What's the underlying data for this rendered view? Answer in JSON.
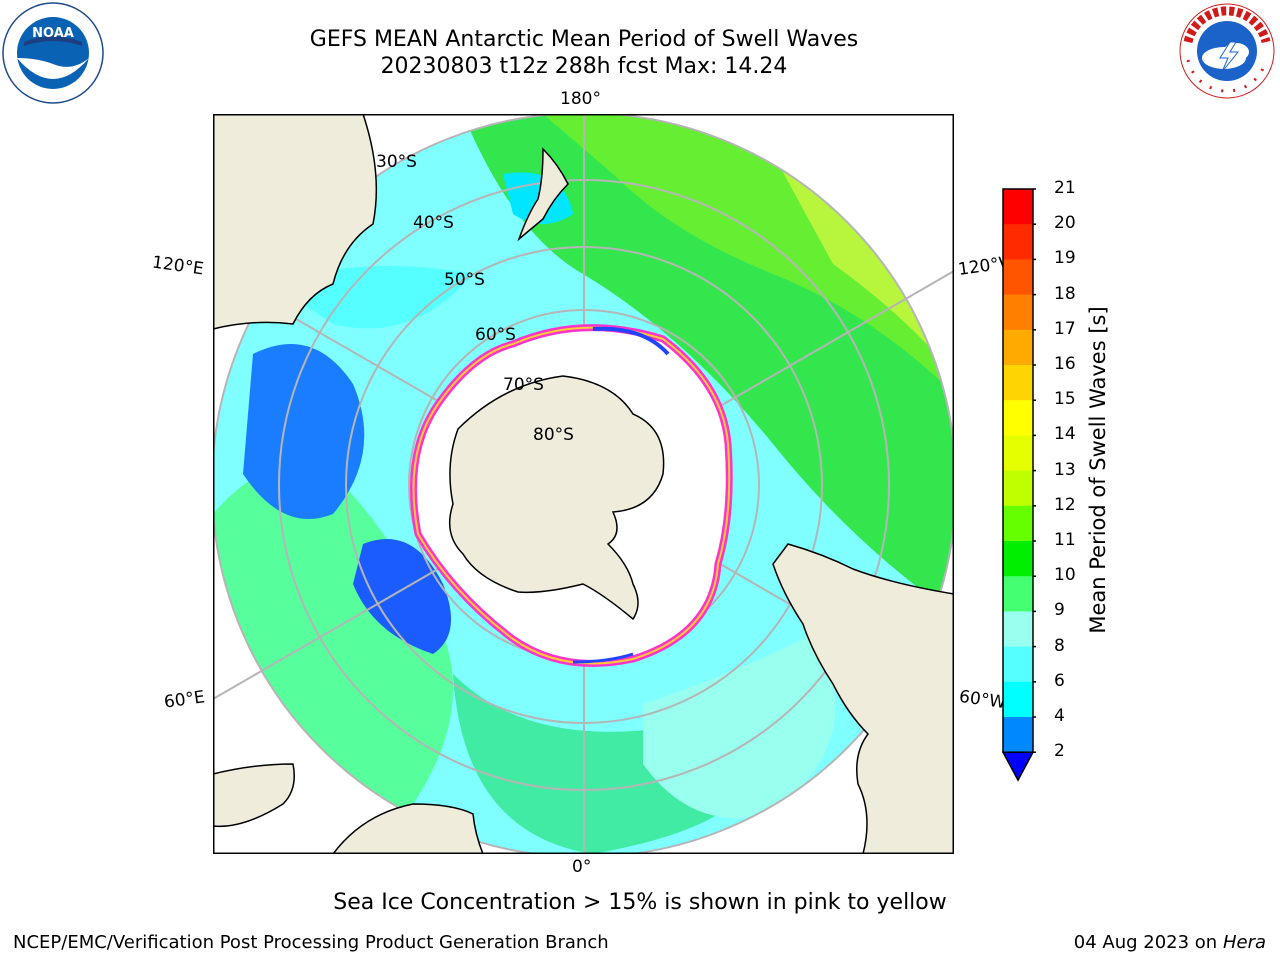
{
  "header": {
    "title_line1": "GEFS MEAN Antarctic Mean Period of Swell Waves",
    "title_line2": "20230803 t12z 288h fcst   Max: 14.24"
  },
  "logos": {
    "left": "noaa-logo",
    "right": "nws-logo"
  },
  "map": {
    "projection": "south-polar-stereographic",
    "meridian_labels": {
      "top": "180°",
      "bottom": "0°",
      "upper_left": "120°E",
      "upper_right": "120°W",
      "lower_left": "60°E",
      "lower_right": "60°W"
    },
    "latitude_labels": [
      "30°S",
      "40°S",
      "50°S",
      "60°S",
      "70°S",
      "80°S"
    ],
    "colors": {
      "land": "#efecdc",
      "ice": "#ffffff",
      "grid": "#b5b5b5",
      "coast": "#000000"
    }
  },
  "colorbar": {
    "title": "Mean Period of Swell Waves [s]",
    "ticks": [
      "21",
      "20",
      "19",
      "18",
      "17",
      "16",
      "15",
      "14",
      "13",
      "12",
      "11",
      "10",
      "9",
      "8",
      "6",
      "4",
      "2"
    ],
    "colors": [
      "#ff0000",
      "#ff2a00",
      "#ff5500",
      "#ff8000",
      "#ffaa00",
      "#ffd400",
      "#ffff00",
      "#e6ff00",
      "#bfff00",
      "#66ff00",
      "#00ee00",
      "#44ff70",
      "#99ffee",
      "#55ffff",
      "#00ffff",
      "#0088ff",
      "#0000ff"
    ]
  },
  "footer": {
    "note": "Sea Ice Concentration > 15% is shown in pink to yellow",
    "credit": "NCEP/EMC/Verification Post Processing Product Generation Branch",
    "date": "04 Aug 2023 on",
    "machine": "Hera"
  }
}
